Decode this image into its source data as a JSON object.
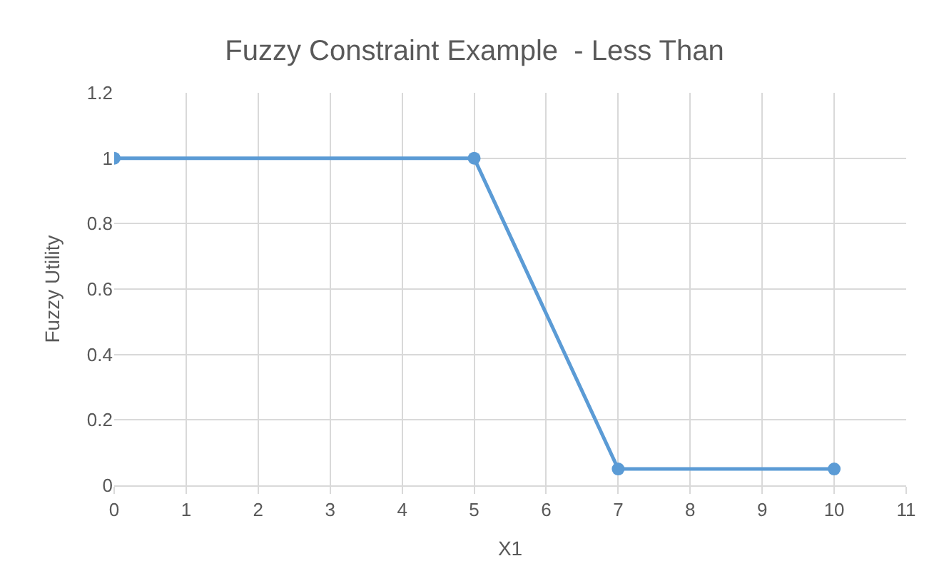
{
  "chart_data": {
    "type": "line",
    "title": "Fuzzy Constraint Example  - Less Than",
    "xlabel": "X1",
    "ylabel": "Fuzzy Utility",
    "x": [
      0,
      5,
      7,
      10
    ],
    "series": [
      {
        "color": "#5b9bd5",
        "values": [
          1,
          1,
          0.05,
          0.05
        ]
      }
    ],
    "xlim": [
      0,
      11
    ],
    "xticks": [
      0,
      1,
      2,
      3,
      4,
      5,
      6,
      7,
      8,
      9,
      10,
      11
    ],
    "ylim": [
      0,
      1.2
    ],
    "yticks": [
      0,
      0.2,
      0.4,
      0.6,
      0.8,
      1,
      1.2
    ],
    "grid": true,
    "marker": "circle",
    "line_style": "solid"
  }
}
